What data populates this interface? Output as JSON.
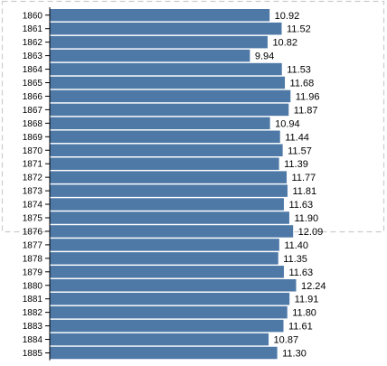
{
  "chart_data": {
    "type": "bar",
    "orientation": "horizontal",
    "title": "",
    "xlabel": "",
    "ylabel": "",
    "categories": [
      "1860",
      "1861",
      "1862",
      "1863",
      "1864",
      "1865",
      "1866",
      "1867",
      "1868",
      "1869",
      "1870",
      "1871",
      "1872",
      "1873",
      "1874",
      "1875",
      "1876",
      "1877",
      "1878",
      "1879",
      "1880",
      "1881",
      "1882",
      "1883",
      "1884",
      "1885"
    ],
    "values": [
      10.92,
      11.52,
      10.82,
      9.94,
      11.53,
      11.68,
      11.96,
      11.87,
      10.94,
      11.44,
      11.57,
      11.39,
      11.77,
      11.81,
      11.63,
      11.9,
      12.09,
      11.4,
      11.35,
      11.63,
      12.24,
      11.91,
      11.8,
      11.61,
      10.87,
      11.3
    ],
    "value_labels": [
      "10.92",
      "11.52",
      "10.82",
      "9.94",
      "11.53",
      "11.68",
      "11.96",
      "11.87",
      "10.94",
      "11.44",
      "11.57",
      "11.39",
      "11.77",
      "11.81",
      "11.63",
      "11.90",
      "12.09",
      "11.40",
      "11.35",
      "11.63",
      "12.24",
      "11.91",
      "11.80",
      "11.61",
      "10.87",
      "11.30"
    ],
    "xlim": [
      0,
      12.24
    ],
    "bar_color": "#4e79a7",
    "grid": false,
    "legend": "none",
    "selection_box_style": "dashed",
    "selection_box_color": "#cccccc"
  }
}
